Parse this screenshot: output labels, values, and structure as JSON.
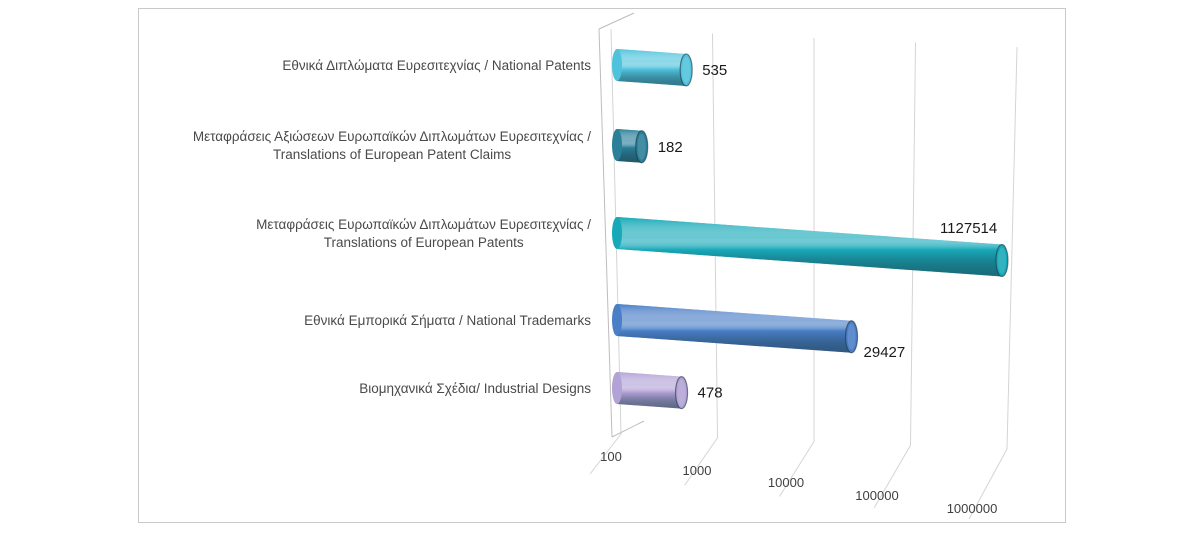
{
  "chart_data": {
    "type": "bar",
    "orientation": "horizontal",
    "style": "3d-cylinder",
    "x_scale": "log",
    "xlim": [
      100,
      1000000
    ],
    "x_ticks": [
      "100",
      "1000",
      "10000",
      "100000",
      "1000000"
    ],
    "grid": true,
    "categories": [
      [
        "Εθνικά Διπλώματα Ευρεσιτεχνίας / National Patents"
      ],
      [
        "Μεταφράσεις Αξιώσεων Ευρωπαϊκών Διπλωμάτων Ευρεσιτεχνίας /",
        "Translations of European Patent Claims"
      ],
      [
        "Μεταφράσεις Ευρωπαϊκών Διπλωμάτων Ευρεσιτεχνίας /",
        "Translations of European Patents"
      ],
      [
        "Εθνικά Εμπορικά Σήματα / National Trademarks"
      ],
      [
        "Βιομηχανικά Σχέδια/ Industrial Designs"
      ]
    ],
    "values": [
      535,
      182,
      1127514,
      29427,
      478
    ],
    "value_labels": [
      "535",
      "182",
      "1127514",
      "29427",
      "478"
    ],
    "colors": [
      "#4fc3dc",
      "#2a7f99",
      "#17a9b8",
      "#4a7ec7",
      "#b3a2d6"
    ]
  }
}
